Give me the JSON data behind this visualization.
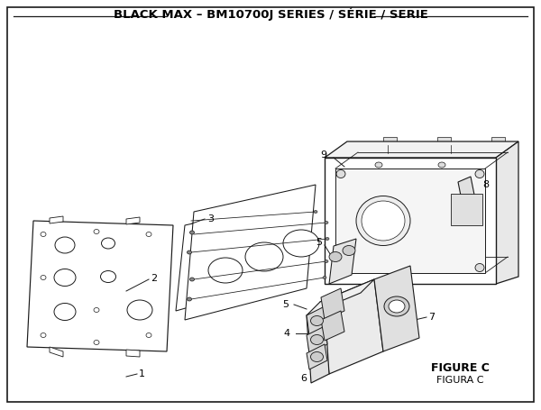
{
  "title": "BLACK MAX – BM10700J SERIES / SÉRIE / SERIE",
  "figure_label": "FIGURE C",
  "figura_label": "FIGURA C",
  "bg_color": "#ffffff",
  "border_color": "#1a1a1a",
  "line_color": "#1a1a1a",
  "title_fontsize": 9.5,
  "label_fontsize": 8
}
